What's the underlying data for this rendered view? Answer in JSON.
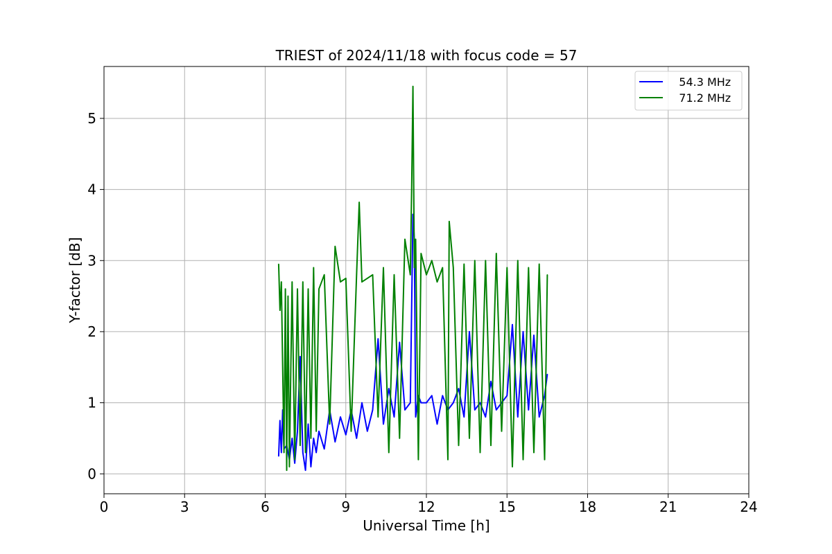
{
  "chart_data": {
    "type": "line",
    "title": "TRIEST of 2024/11/18 with focus code = 57",
    "xlabel": "Universal Time [h]",
    "ylabel": "Y-factor [dB]",
    "xlim": [
      0,
      24
    ],
    "ylim": [
      -0.28,
      5.73
    ],
    "xticks": [
      0,
      3,
      6,
      9,
      12,
      15,
      18,
      21,
      24
    ],
    "yticks": [
      0,
      1,
      2,
      3,
      4,
      5
    ],
    "grid": true,
    "legend_position": "top-right",
    "series": [
      {
        "name": "   54.3 MHz",
        "color": "#0000ff",
        "x": [
          6.5,
          6.55,
          6.6,
          6.65,
          6.7,
          6.8,
          6.9,
          7.0,
          7.1,
          7.2,
          7.3,
          7.4,
          7.5,
          7.6,
          7.7,
          7.8,
          7.9,
          8.0,
          8.2,
          8.4,
          8.6,
          8.8,
          9.0,
          9.2,
          9.4,
          9.6,
          9.8,
          10.0,
          10.2,
          10.4,
          10.6,
          10.8,
          11.0,
          11.2,
          11.4,
          11.5,
          11.55,
          11.6,
          11.7,
          11.8,
          12.0,
          12.2,
          12.4,
          12.6,
          12.8,
          13.0,
          13.2,
          13.4,
          13.6,
          13.8,
          14.0,
          14.2,
          14.4,
          14.6,
          14.8,
          15.0,
          15.2,
          15.4,
          15.6,
          15.8,
          16.0,
          16.2,
          16.4,
          16.5
        ],
        "values": [
          0.25,
          0.75,
          0.3,
          0.9,
          0.35,
          0.4,
          0.2,
          0.5,
          0.15,
          0.6,
          1.65,
          0.3,
          0.05,
          0.7,
          0.1,
          0.5,
          0.3,
          0.6,
          0.35,
          0.9,
          0.45,
          0.8,
          0.55,
          0.9,
          0.5,
          1.0,
          0.6,
          0.9,
          1.9,
          0.7,
          1.2,
          0.8,
          1.85,
          0.9,
          1.0,
          3.65,
          3.3,
          0.8,
          1.1,
          1.0,
          1.0,
          1.1,
          0.7,
          1.1,
          0.9,
          1.0,
          1.2,
          0.8,
          2.0,
          0.9,
          1.0,
          0.8,
          1.3,
          0.9,
          1.0,
          1.1,
          2.1,
          0.8,
          2.0,
          0.9,
          1.95,
          0.8,
          1.1,
          1.4
        ]
      },
      {
        "name": "   71.2 MHz",
        "color": "#008000",
        "x": [
          6.5,
          6.55,
          6.6,
          6.7,
          6.75,
          6.8,
          6.85,
          6.9,
          7.0,
          7.1,
          7.2,
          7.3,
          7.4,
          7.5,
          7.6,
          7.7,
          7.8,
          7.9,
          8.0,
          8.2,
          8.4,
          8.6,
          8.8,
          9.0,
          9.2,
          9.4,
          9.5,
          9.6,
          9.8,
          10.0,
          10.2,
          10.4,
          10.6,
          10.8,
          11.0,
          11.2,
          11.4,
          11.45,
          11.5,
          11.55,
          11.6,
          11.7,
          11.8,
          12.0,
          12.2,
          12.4,
          12.6,
          12.8,
          12.85,
          13.0,
          13.2,
          13.4,
          13.6,
          13.8,
          14.0,
          14.2,
          14.4,
          14.6,
          14.8,
          15.0,
          15.2,
          15.4,
          15.6,
          15.8,
          16.0,
          16.2,
          16.4,
          16.5
        ],
        "values": [
          2.95,
          2.3,
          2.7,
          0.3,
          2.6,
          0.05,
          2.5,
          0.1,
          2.7,
          0.2,
          2.6,
          0.4,
          2.7,
          0.3,
          2.6,
          0.5,
          2.9,
          0.6,
          2.6,
          2.8,
          0.7,
          3.2,
          2.7,
          2.75,
          0.6,
          2.8,
          3.82,
          2.7,
          2.75,
          2.8,
          0.8,
          2.9,
          0.3,
          2.8,
          0.5,
          3.3,
          2.8,
          3.99,
          5.45,
          2.9,
          3.3,
          0.2,
          3.1,
          2.8,
          3.0,
          2.7,
          2.9,
          0.2,
          3.55,
          2.9,
          0.4,
          2.95,
          0.5,
          3.0,
          0.3,
          3.0,
          0.4,
          3.1,
          0.6,
          2.9,
          0.1,
          3.0,
          0.2,
          2.9,
          0.3,
          2.95,
          0.2,
          2.8
        ]
      }
    ]
  }
}
